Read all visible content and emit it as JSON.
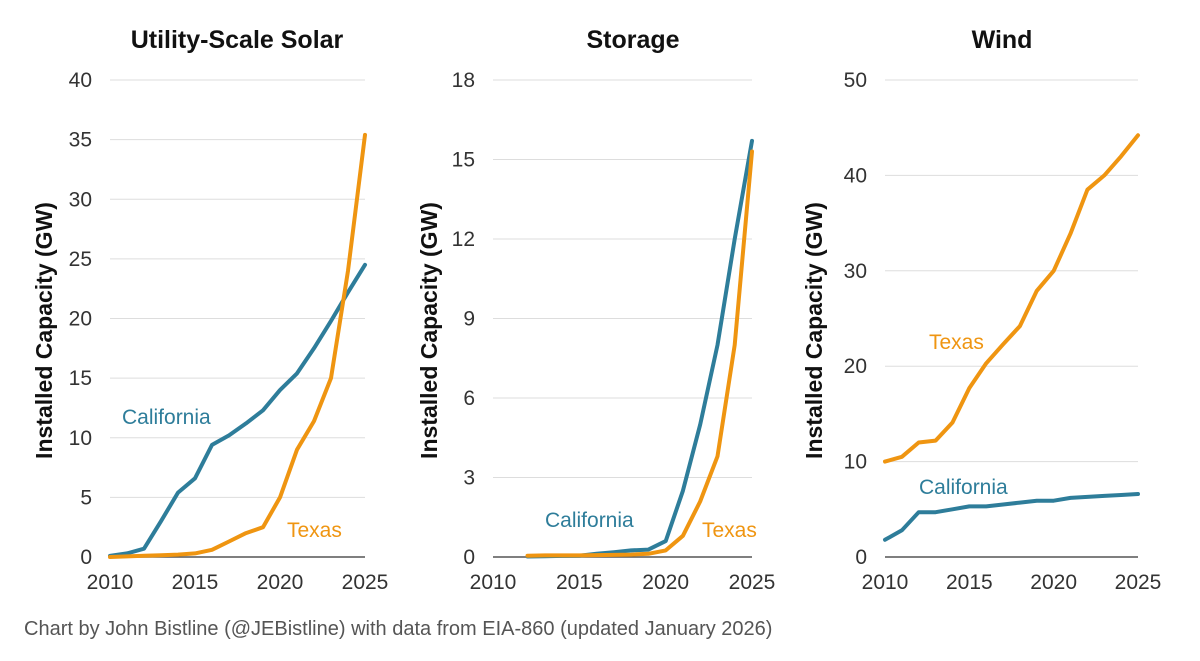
{
  "caption": "Chart by John Bistline (@JEBistline) with data from EIA-860 (updated January 2026)",
  "colors": {
    "California": "#2e7d9a",
    "Texas": "#ef9511"
  },
  "chart_data": [
    {
      "type": "line",
      "title": "Utility-Scale Solar",
      "ylabel": "Installed Capacity (GW)",
      "xlabel": "",
      "xlim": [
        2010,
        2025
      ],
      "ylim": [
        0,
        40
      ],
      "xticks": [
        2010,
        2015,
        2020,
        2025
      ],
      "yticks": [
        0,
        5,
        10,
        15,
        20,
        25,
        30,
        35,
        40
      ],
      "grid": true,
      "series": [
        {
          "name": "California",
          "x": [
            2010,
            2011,
            2012,
            2013,
            2014,
            2015,
            2016,
            2017,
            2018,
            2019,
            2020,
            2021,
            2022,
            2023,
            2024,
            2025
          ],
          "y": [
            0.1,
            0.3,
            0.7,
            3.0,
            5.4,
            6.6,
            9.4,
            10.2,
            11.2,
            12.3,
            14.0,
            15.4,
            17.5,
            19.8,
            22.2,
            24.5
          ]
        },
        {
          "name": "Texas",
          "x": [
            2010,
            2011,
            2012,
            2013,
            2014,
            2015,
            2016,
            2017,
            2018,
            2019,
            2020,
            2021,
            2022,
            2023,
            2024,
            2025
          ],
          "y": [
            0.0,
            0.05,
            0.1,
            0.15,
            0.2,
            0.3,
            0.6,
            1.3,
            2.0,
            2.5,
            5.0,
            9.0,
            11.4,
            15.0,
            24.0,
            35.4
          ]
        }
      ]
    },
    {
      "type": "line",
      "title": "Storage",
      "ylabel": "Installed Capacity (GW)",
      "xlabel": "",
      "xlim": [
        2010,
        2025
      ],
      "ylim": [
        0,
        18
      ],
      "xticks": [
        2010,
        2015,
        2020,
        2025
      ],
      "yticks": [
        0,
        3,
        6,
        9,
        12,
        15,
        18
      ],
      "grid": true,
      "series": [
        {
          "name": "California",
          "x": [
            2012,
            2013,
            2014,
            2015,
            2016,
            2017,
            2018,
            2019,
            2020,
            2021,
            2022,
            2023,
            2024,
            2025
          ],
          "y": [
            0.02,
            0.03,
            0.04,
            0.05,
            0.12,
            0.18,
            0.25,
            0.28,
            0.6,
            2.5,
            5.0,
            8.0,
            12.0,
            15.7
          ]
        },
        {
          "name": "Texas",
          "x": [
            2012,
            2013,
            2014,
            2015,
            2016,
            2017,
            2018,
            2019,
            2020,
            2021,
            2022,
            2023,
            2024,
            2025
          ],
          "y": [
            0.05,
            0.06,
            0.06,
            0.06,
            0.07,
            0.08,
            0.09,
            0.12,
            0.25,
            0.8,
            2.1,
            3.8,
            8.0,
            15.3
          ]
        }
      ]
    },
    {
      "type": "line",
      "title": "Wind",
      "ylabel": "Installed Capacity (GW)",
      "xlabel": "",
      "xlim": [
        2010,
        2025
      ],
      "ylim": [
        0,
        50
      ],
      "xticks": [
        2010,
        2015,
        2020,
        2025
      ],
      "yticks": [
        0,
        10,
        20,
        30,
        40,
        50
      ],
      "grid": true,
      "series": [
        {
          "name": "California",
          "x": [
            2010,
            2011,
            2012,
            2013,
            2014,
            2015,
            2016,
            2017,
            2018,
            2019,
            2020,
            2021,
            2022,
            2023,
            2024,
            2025
          ],
          "y": [
            1.8,
            2.8,
            4.7,
            4.7,
            5.0,
            5.3,
            5.3,
            5.5,
            5.7,
            5.9,
            5.9,
            6.2,
            6.3,
            6.4,
            6.5,
            6.6
          ]
        },
        {
          "name": "Texas",
          "x": [
            2010,
            2011,
            2012,
            2013,
            2014,
            2015,
            2016,
            2017,
            2018,
            2019,
            2020,
            2021,
            2022,
            2023,
            2024,
            2025
          ],
          "y": [
            10.0,
            10.5,
            12.0,
            12.2,
            14.1,
            17.7,
            20.3,
            22.3,
            24.2,
            27.9,
            30.0,
            33.9,
            38.5,
            40.0,
            42.0,
            44.2
          ]
        }
      ]
    }
  ],
  "series_labels": [
    [
      {
        "series": "California",
        "text": "California"
      },
      {
        "series": "Texas",
        "text": "Texas"
      }
    ],
    [
      {
        "series": "California",
        "text": "California"
      },
      {
        "series": "Texas",
        "text": "Texas"
      }
    ],
    [
      {
        "series": "Texas",
        "text": "Texas"
      },
      {
        "series": "California",
        "text": "California"
      }
    ]
  ]
}
